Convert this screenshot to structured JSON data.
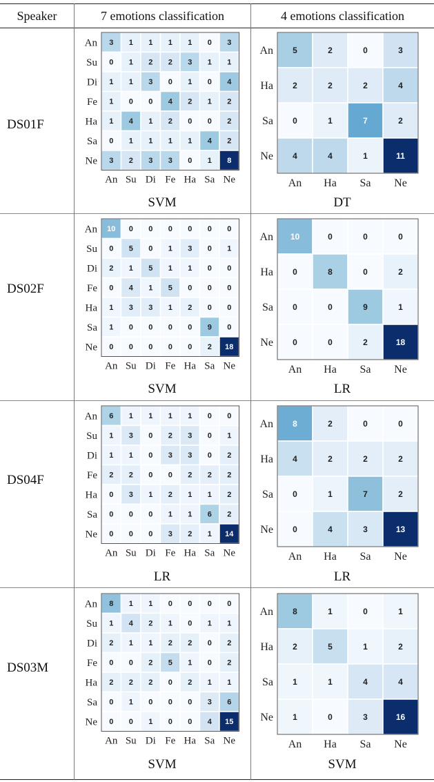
{
  "header": {
    "speaker": "Speaker",
    "col7": "7 emotions classification",
    "col4": "4 emotions classification"
  },
  "labels7": [
    "An",
    "Su",
    "Di",
    "Fe",
    "Ha",
    "Sa",
    "Ne"
  ],
  "labels4": [
    "An",
    "Ha",
    "Sa",
    "Ne"
  ],
  "rows": [
    {
      "speaker": "DS01F",
      "left": {
        "classifier": "SVM",
        "matrix": [
          [
            3,
            1,
            1,
            1,
            1,
            0,
            3
          ],
          [
            0,
            1,
            2,
            2,
            3,
            1,
            1
          ],
          [
            1,
            1,
            3,
            0,
            1,
            0,
            4
          ],
          [
            1,
            0,
            0,
            4,
            2,
            1,
            2
          ],
          [
            1,
            4,
            1,
            2,
            0,
            0,
            2
          ],
          [
            0,
            1,
            1,
            1,
            1,
            4,
            2
          ],
          [
            3,
            2,
            3,
            3,
            0,
            1,
            8
          ]
        ]
      },
      "right": {
        "classifier": "DT",
        "matrix": [
          [
            5,
            2,
            0,
            3
          ],
          [
            2,
            2,
            2,
            4
          ],
          [
            0,
            1,
            7,
            2
          ],
          [
            4,
            4,
            1,
            11
          ]
        ]
      }
    },
    {
      "speaker": "DS02F",
      "left": {
        "classifier": "SVM",
        "matrix": [
          [
            10,
            0,
            0,
            0,
            0,
            0,
            0
          ],
          [
            0,
            5,
            0,
            1,
            3,
            0,
            1
          ],
          [
            2,
            1,
            5,
            1,
            1,
            0,
            0
          ],
          [
            0,
            4,
            1,
            5,
            0,
            0,
            0
          ],
          [
            1,
            3,
            3,
            1,
            2,
            0,
            0
          ],
          [
            1,
            0,
            0,
            0,
            0,
            9,
            0
          ],
          [
            0,
            0,
            0,
            0,
            0,
            2,
            18
          ]
        ]
      },
      "right": {
        "classifier": "LR",
        "matrix": [
          [
            10,
            0,
            0,
            0
          ],
          [
            0,
            8,
            0,
            2
          ],
          [
            0,
            0,
            9,
            1
          ],
          [
            0,
            0,
            2,
            18
          ]
        ]
      }
    },
    {
      "speaker": "DS04F",
      "left": {
        "classifier": "LR",
        "matrix": [
          [
            6,
            1,
            1,
            1,
            1,
            0,
            0
          ],
          [
            1,
            3,
            0,
            2,
            3,
            0,
            1
          ],
          [
            1,
            1,
            0,
            3,
            3,
            0,
            2
          ],
          [
            2,
            2,
            0,
            0,
            2,
            2,
            2
          ],
          [
            0,
            3,
            1,
            2,
            1,
            1,
            2
          ],
          [
            0,
            0,
            0,
            1,
            1,
            6,
            2
          ],
          [
            0,
            0,
            0,
            3,
            2,
            1,
            14
          ]
        ]
      },
      "right": {
        "classifier": "LR",
        "matrix": [
          [
            8,
            2,
            0,
            0
          ],
          [
            4,
            2,
            2,
            2
          ],
          [
            0,
            1,
            7,
            2
          ],
          [
            0,
            4,
            3,
            13
          ]
        ]
      }
    },
    {
      "speaker": "DS03M",
      "left": {
        "classifier": "SVM",
        "matrix": [
          [
            8,
            1,
            1,
            0,
            0,
            0,
            0
          ],
          [
            1,
            4,
            2,
            1,
            0,
            1,
            1
          ],
          [
            2,
            1,
            1,
            2,
            2,
            0,
            2
          ],
          [
            0,
            0,
            2,
            5,
            1,
            0,
            2
          ],
          [
            2,
            2,
            2,
            0,
            2,
            1,
            1
          ],
          [
            0,
            1,
            0,
            0,
            0,
            3,
            6
          ],
          [
            0,
            0,
            1,
            0,
            0,
            4,
            15
          ]
        ]
      },
      "right": {
        "classifier": "SVM",
        "matrix": [
          [
            8,
            1,
            0,
            1
          ],
          [
            2,
            5,
            1,
            2
          ],
          [
            1,
            1,
            4,
            4
          ],
          [
            1,
            0,
            3,
            16
          ]
        ]
      }
    }
  ],
  "colors": {
    "low": "#f7fbff",
    "high": "#0b2d6b"
  }
}
